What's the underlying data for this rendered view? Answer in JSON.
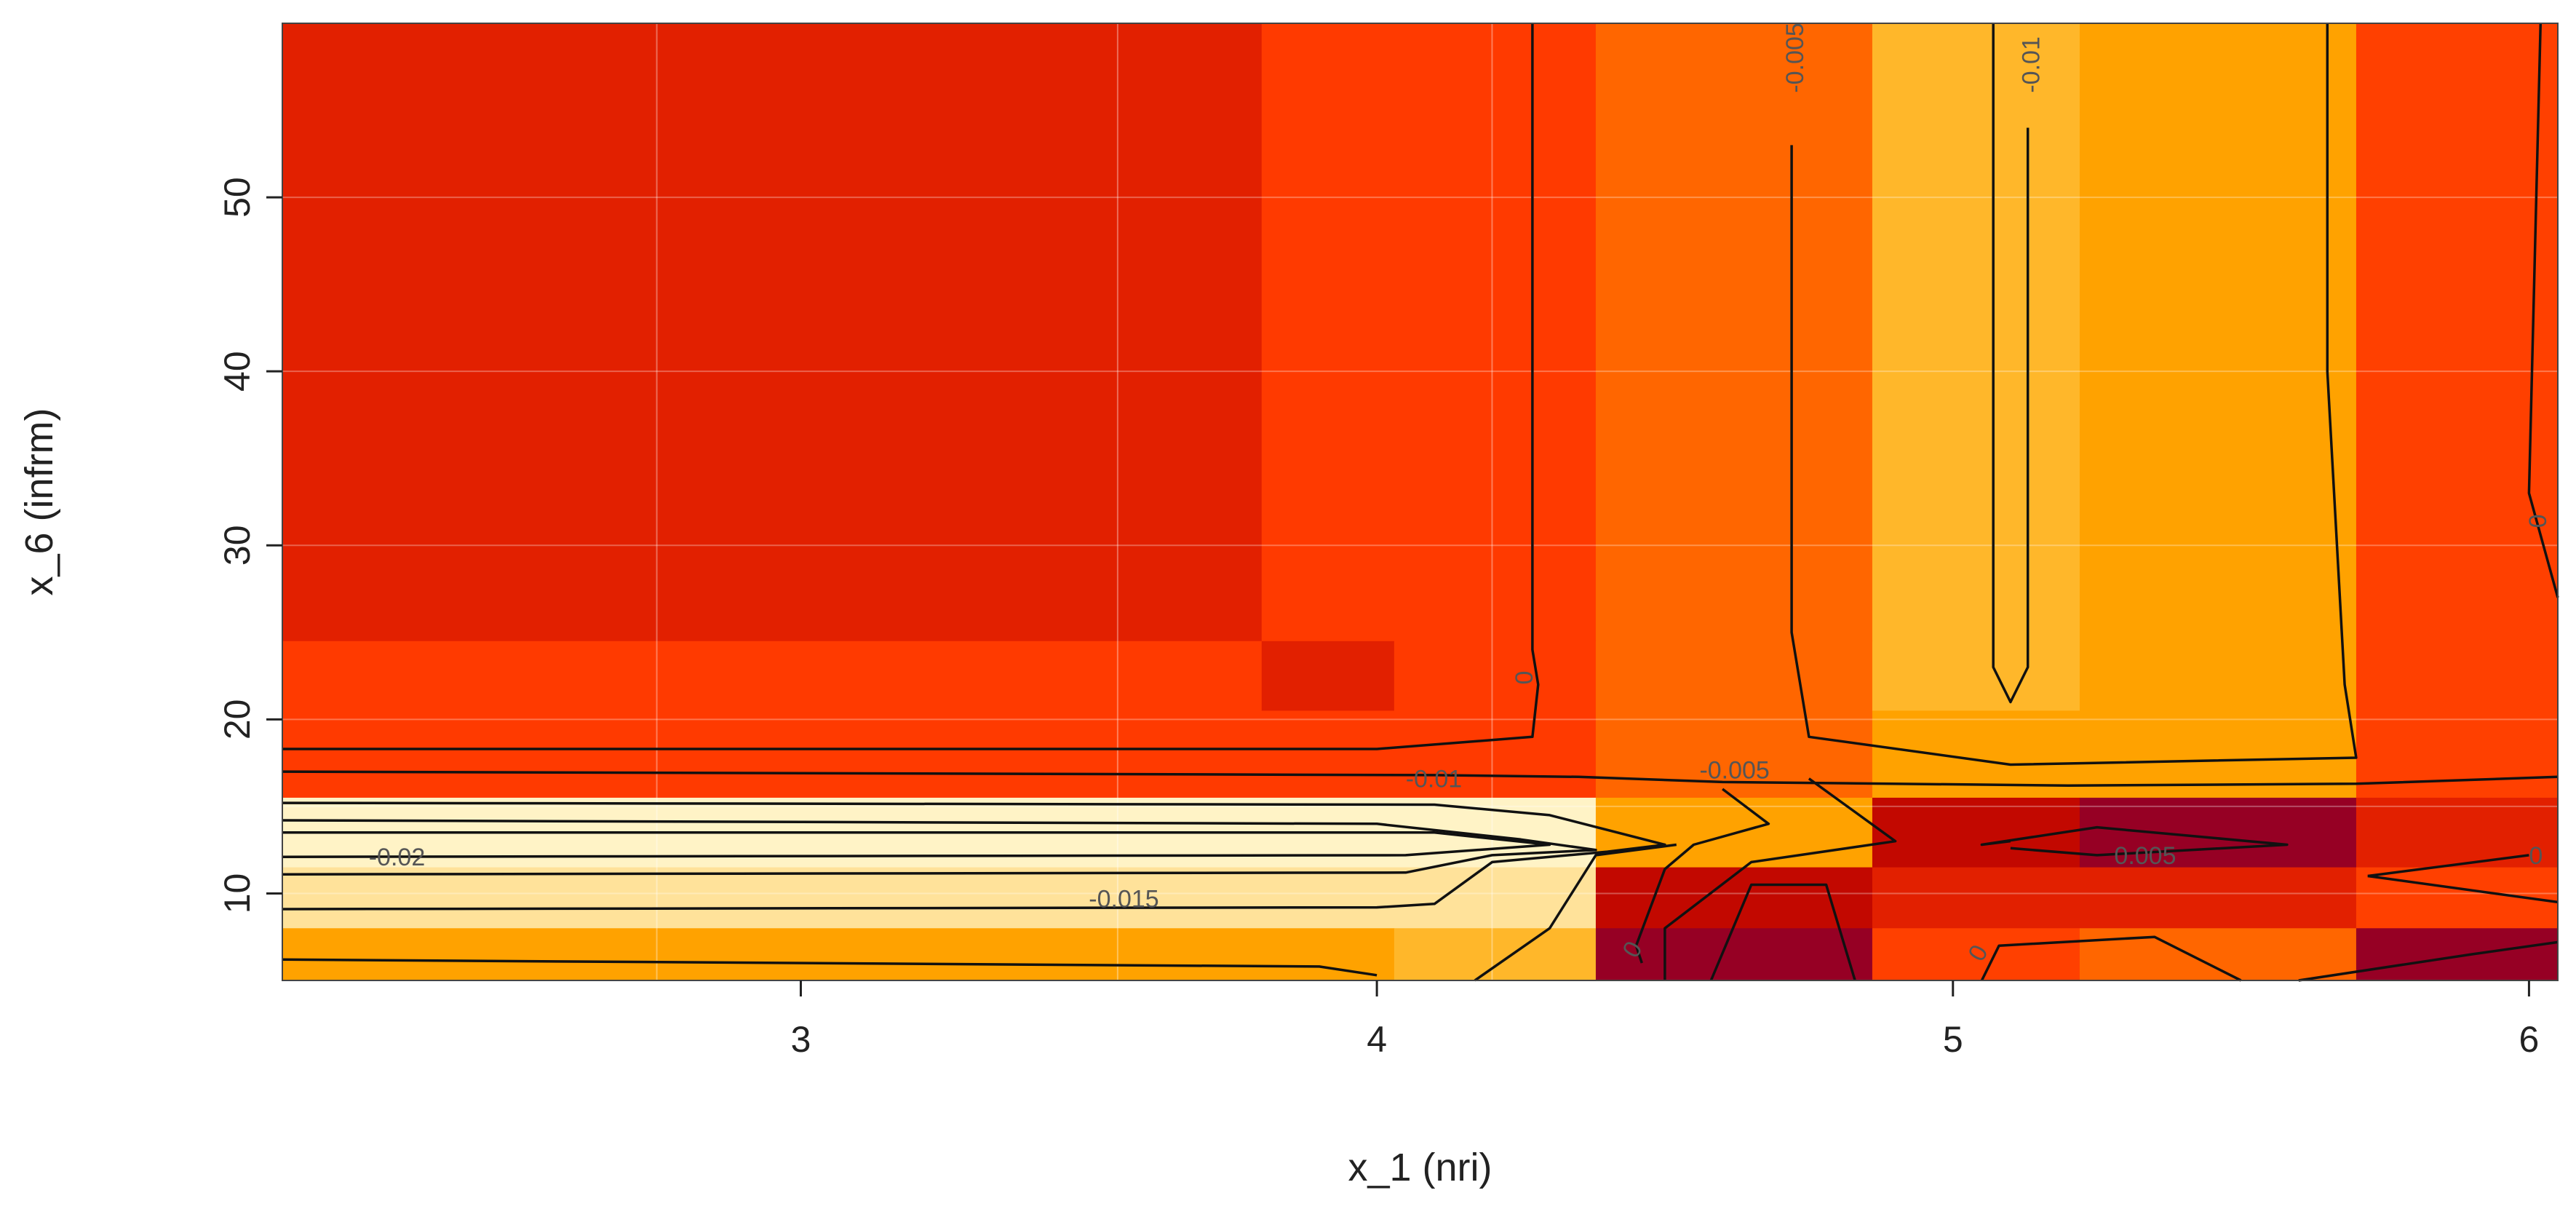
{
  "chart_data": {
    "type": "heatmap",
    "title": "",
    "xlabel": "x_1 (nri)",
    "ylabel": "x_6 (infrm)",
    "xlim": [
      2.1,
      6.05
    ],
    "ylim": [
      5,
      60
    ],
    "xticks": [
      3,
      4,
      5,
      6
    ],
    "yticks": [
      10,
      20,
      30,
      40,
      50
    ],
    "xtick_labels": [
      "3",
      "4",
      "5",
      "6"
    ],
    "ytick_labels": [
      "10",
      "20",
      "30",
      "40",
      "50"
    ],
    "grid": true,
    "cells": [
      {
        "x0": 2.1,
        "x1": 3.8,
        "y0": 24.5,
        "y1": 60,
        "color": "#E22000"
      },
      {
        "x0": 3.8,
        "x1": 4.38,
        "y0": 24.5,
        "y1": 60,
        "color": "#FF3A00"
      },
      {
        "x0": 4.38,
        "x1": 4.86,
        "y0": 24.5,
        "y1": 60,
        "color": "#FF6600"
      },
      {
        "x0": 4.86,
        "x1": 5.22,
        "y0": 24.5,
        "y1": 60,
        "color": "#FFB72A"
      },
      {
        "x0": 5.22,
        "x1": 5.7,
        "y0": 24.5,
        "y1": 60,
        "color": "#FFA200"
      },
      {
        "x0": 5.7,
        "x1": 6.05,
        "y0": 24.5,
        "y1": 60,
        "color": "#FF4000"
      },
      {
        "x0": 2.1,
        "x1": 3.8,
        "y0": 15.5,
        "y1": 24.5,
        "color": "#FF3A00"
      },
      {
        "x0": 3.8,
        "x1": 4.03,
        "y0": 20.5,
        "y1": 24.5,
        "color": "#E22000"
      },
      {
        "x0": 3.8,
        "x1": 4.03,
        "y0": 15.5,
        "y1": 20.5,
        "color": "#FF3A00"
      },
      {
        "x0": 4.03,
        "x1": 4.38,
        "y0": 15.5,
        "y1": 24.5,
        "color": "#FF3A00"
      },
      {
        "x0": 4.38,
        "x1": 4.86,
        "y0": 15.5,
        "y1": 24.5,
        "color": "#FF6600"
      },
      {
        "x0": 4.86,
        "x1": 5.22,
        "y0": 20.5,
        "y1": 24.5,
        "color": "#FFB72A"
      },
      {
        "x0": 4.86,
        "x1": 5.22,
        "y0": 15.5,
        "y1": 20.5,
        "color": "#FFA200"
      },
      {
        "x0": 5.22,
        "x1": 5.7,
        "y0": 15.5,
        "y1": 24.5,
        "color": "#FFA200"
      },
      {
        "x0": 5.7,
        "x1": 6.05,
        "y0": 15.5,
        "y1": 24.5,
        "color": "#FF4000"
      },
      {
        "x0": 2.1,
        "x1": 4.38,
        "y0": 11.5,
        "y1": 15.5,
        "color": "#FFF3C6"
      },
      {
        "x0": 4.38,
        "x1": 4.86,
        "y0": 11.5,
        "y1": 15.5,
        "color": "#FFA200"
      },
      {
        "x0": 4.86,
        "x1": 5.22,
        "y0": 11.5,
        "y1": 15.5,
        "color": "#C20800"
      },
      {
        "x0": 5.22,
        "x1": 5.7,
        "y0": 11.5,
        "y1": 15.5,
        "color": "#960024"
      },
      {
        "x0": 5.7,
        "x1": 6.05,
        "y0": 11.5,
        "y1": 15.5,
        "color": "#E22000"
      },
      {
        "x0": 2.1,
        "x1": 4.38,
        "y0": 8,
        "y1": 11.5,
        "color": "#FFE29A"
      },
      {
        "x0": 4.38,
        "x1": 4.86,
        "y0": 8,
        "y1": 11.5,
        "color": "#C20800"
      },
      {
        "x0": 4.86,
        "x1": 5.7,
        "y0": 8,
        "y1": 11.5,
        "color": "#E22000"
      },
      {
        "x0": 5.7,
        "x1": 6.05,
        "y0": 8,
        "y1": 11.5,
        "color": "#FF4000"
      },
      {
        "x0": 2.1,
        "x1": 4.03,
        "y0": 5,
        "y1": 8,
        "color": "#FFA200"
      },
      {
        "x0": 4.03,
        "x1": 4.38,
        "y0": 5,
        "y1": 8,
        "color": "#FFB72A"
      },
      {
        "x0": 4.38,
        "x1": 4.86,
        "y0": 5,
        "y1": 8,
        "color": "#960024"
      },
      {
        "x0": 4.86,
        "x1": 5.22,
        "y0": 5,
        "y1": 8,
        "color": "#FF4000"
      },
      {
        "x0": 5.22,
        "x1": 5.7,
        "y0": 5,
        "y1": 8,
        "color": "#FF6600"
      },
      {
        "x0": 5.7,
        "x1": 6.05,
        "y0": 5,
        "y1": 8,
        "color": "#960024"
      }
    ],
    "contours": [
      {
        "points": [
          [
            4.27,
            60
          ],
          [
            4.27,
            24
          ],
          [
            4.28,
            22
          ],
          [
            4.27,
            19
          ],
          [
            4.0,
            18.3
          ],
          [
            2.1,
            18.3
          ]
        ]
      },
      {
        "points": [
          [
            2.1,
            17
          ],
          [
            4.1,
            16.8
          ],
          [
            4.35,
            16.7
          ],
          [
            4.6,
            16.4
          ],
          [
            5.2,
            16.2
          ],
          [
            5.7,
            16.3
          ],
          [
            6.05,
            16.7
          ]
        ]
      },
      {
        "points": [
          [
            4.72,
            53
          ],
          [
            4.72,
            25
          ],
          [
            4.75,
            19
          ],
          [
            5.1,
            17.4
          ],
          [
            5.7,
            17.8
          ],
          [
            5.68,
            22
          ],
          [
            5.65,
            40
          ],
          [
            5.65,
            60
          ]
        ]
      },
      {
        "points": [
          [
            5.07,
            60
          ],
          [
            5.07,
            23
          ],
          [
            5.1,
            21
          ],
          [
            5.13,
            23
          ],
          [
            5.13,
            54
          ]
        ]
      },
      {
        "points": [
          [
            6.02,
            60
          ],
          [
            6.0,
            33
          ],
          [
            6.05,
            27
          ]
        ]
      },
      {
        "points": [
          [
            2.1,
            15.2
          ],
          [
            4.1,
            15.1
          ],
          [
            4.3,
            14.5
          ],
          [
            4.5,
            12.8
          ],
          [
            4.4,
            12.4
          ],
          [
            4.2,
            11.8
          ],
          [
            4.1,
            9.4
          ],
          [
            4.0,
            9.2
          ],
          [
            2.1,
            9.1
          ]
        ]
      },
      {
        "points": [
          [
            2.1,
            14.2
          ],
          [
            4.0,
            14.0
          ],
          [
            4.25,
            13.1
          ],
          [
            4.38,
            12.5
          ],
          [
            4.2,
            12.2
          ],
          [
            4.05,
            11.2
          ],
          [
            2.1,
            11.1
          ]
        ]
      },
      {
        "points": [
          [
            2.1,
            13.5
          ],
          [
            4.1,
            13.5
          ],
          [
            4.3,
            12.8
          ],
          [
            4.05,
            12.2
          ],
          [
            2.1,
            12.1
          ]
        ]
      },
      {
        "points": [
          [
            2.1,
            6.2
          ],
          [
            3.9,
            5.8
          ],
          [
            4.0,
            5.3
          ]
        ]
      },
      {
        "points": [
          [
            4.17,
            5
          ],
          [
            4.3,
            8
          ],
          [
            4.38,
            12.2
          ],
          [
            4.52,
            12.8
          ]
        ]
      },
      {
        "points": [
          [
            4.6,
            16
          ],
          [
            4.68,
            14
          ],
          [
            4.55,
            12.8
          ],
          [
            4.5,
            11.4
          ],
          [
            4.45,
            7
          ],
          [
            4.46,
            6
          ]
        ]
      },
      {
        "points": [
          [
            4.75,
            16.6
          ],
          [
            4.9,
            13
          ],
          [
            4.65,
            11.8
          ],
          [
            4.5,
            8
          ],
          [
            4.5,
            5
          ]
        ]
      },
      {
        "points": [
          [
            4.58,
            5
          ],
          [
            4.65,
            10.5
          ],
          [
            4.78,
            10.5
          ],
          [
            4.83,
            5
          ]
        ]
      },
      {
        "points": [
          [
            5.05,
            5
          ],
          [
            5.08,
            7
          ],
          [
            5.35,
            7.5
          ],
          [
            5.5,
            5
          ]
        ]
      },
      {
        "points": [
          [
            5.1,
            13
          ],
          [
            5.05,
            12.8
          ],
          [
            5.25,
            13.8
          ],
          [
            5.58,
            12.8
          ],
          [
            5.25,
            12.2
          ],
          [
            5.1,
            12.6
          ]
        ]
      },
      {
        "points": [
          [
            5.72,
            11
          ],
          [
            6.05,
            9.5
          ]
        ]
      },
      {
        "points": [
          [
            5.72,
            11
          ],
          [
            6.0,
            12.2
          ]
        ]
      },
      {
        "points": [
          [
            5.6,
            5
          ],
          [
            5.9,
            6.5
          ],
          [
            6.05,
            7.2
          ]
        ]
      }
    ],
    "contour_labels": [
      {
        "text": "-0.005",
        "x": 4.74,
        "y": 56,
        "rotate": -90
      },
      {
        "text": "-0.01",
        "x": 5.15,
        "y": 56,
        "rotate": -90
      },
      {
        "text": "0",
        "x": 4.27,
        "y": 22,
        "rotate": -90
      },
      {
        "text": "-0.005",
        "x": 4.56,
        "y": 16.6,
        "rotate": 0
      },
      {
        "text": "-0.01",
        "x": 4.05,
        "y": 16.1,
        "rotate": 0
      },
      {
        "text": "-0.02",
        "x": 2.25,
        "y": 11.6,
        "rotate": 0
      },
      {
        "text": "-0.015",
        "x": 3.5,
        "y": 9.2,
        "rotate": 0
      },
      {
        "text": "0.005",
        "x": 5.28,
        "y": 11.7,
        "rotate": 0
      },
      {
        "text": "0",
        "x": 6.0,
        "y": 11.7,
        "rotate": 0
      },
      {
        "text": "0",
        "x": 4.45,
        "y": 6.2,
        "rotate": -60
      },
      {
        "text": "0",
        "x": 5.05,
        "y": 6.0,
        "rotate": -60
      },
      {
        "text": "0",
        "x": 6.03,
        "y": 31,
        "rotate": -90
      }
    ]
  }
}
